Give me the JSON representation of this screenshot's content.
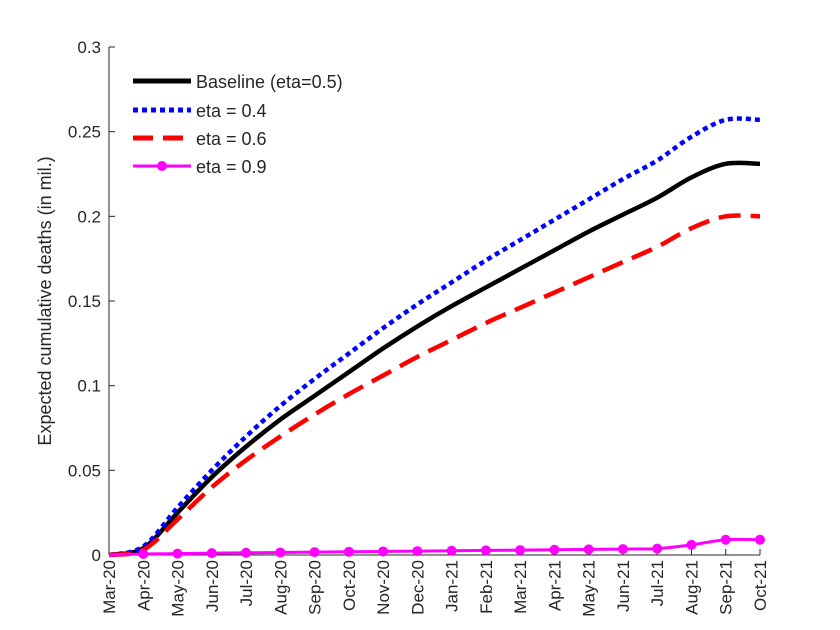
{
  "chart_data": {
    "type": "line",
    "title": "",
    "xlabel": "",
    "ylabel": "Expected cumulative deaths (in mil.)",
    "categories": [
      "Mar-20",
      "Apr-20",
      "May-20",
      "Jun-20",
      "Jul-20",
      "Aug-20",
      "Sep-20",
      "Oct-20",
      "Nov-20",
      "Dec-20",
      "Jan-21",
      "Feb-21",
      "Mar-21",
      "Apr-21",
      "May-21",
      "Jun-21",
      "Jul-21",
      "Aug-21",
      "Sep-21",
      "Oct-21"
    ],
    "yticks": [
      "0",
      "0.05",
      "0.1",
      "0.15",
      "0.2",
      "0.25",
      "0.3"
    ],
    "ylim": [
      0,
      0.3
    ],
    "grid": false,
    "legend_position": "top-left",
    "series": [
      {
        "name": "Baseline (eta=0.5)",
        "color": "#000000",
        "style": "solid",
        "values": [
          0,
          0.004,
          0.025,
          0.046,
          0.064,
          0.08,
          0.094,
          0.108,
          0.122,
          0.135,
          0.147,
          0.158,
          0.169,
          0.18,
          0.191,
          0.201,
          0.211,
          0.223,
          0.231,
          0.231
        ]
      },
      {
        "name": "eta = 0.4",
        "color": "#0000FF",
        "style": "dotted",
        "values": [
          0,
          0.005,
          0.028,
          0.05,
          0.07,
          0.088,
          0.104,
          0.119,
          0.134,
          0.148,
          0.161,
          0.174,
          0.186,
          0.198,
          0.21,
          0.222,
          0.233,
          0.247,
          0.257,
          0.257
        ]
      },
      {
        "name": "eta = 0.6",
        "color": "#FF0000",
        "style": "dashed",
        "values": [
          0,
          0.003,
          0.021,
          0.04,
          0.056,
          0.07,
          0.083,
          0.095,
          0.106,
          0.117,
          0.127,
          0.137,
          0.146,
          0.155,
          0.164,
          0.173,
          0.182,
          0.193,
          0.2,
          0.2
        ]
      },
      {
        "name": "eta = 0.9",
        "color": "#FF00FF",
        "style": "solid-markers",
        "values": [
          0,
          0.0006,
          0.0008,
          0.0011,
          0.0013,
          0.0015,
          0.0017,
          0.0019,
          0.0021,
          0.0023,
          0.0025,
          0.0027,
          0.0029,
          0.0031,
          0.0033,
          0.0035,
          0.0038,
          0.006,
          0.009,
          0.009
        ]
      }
    ]
  }
}
